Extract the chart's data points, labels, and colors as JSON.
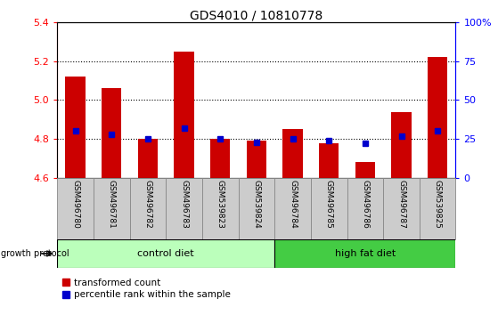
{
  "title": "GDS4010 / 10810778",
  "samples": [
    "GSM496780",
    "GSM496781",
    "GSM496782",
    "GSM496783",
    "GSM539823",
    "GSM539824",
    "GSM496784",
    "GSM496785",
    "GSM496786",
    "GSM496787",
    "GSM539825"
  ],
  "transformed_count": [
    5.12,
    5.06,
    4.8,
    5.25,
    4.8,
    4.79,
    4.85,
    4.78,
    4.68,
    4.94,
    5.22
  ],
  "percentile_rank": [
    30,
    28,
    25,
    32,
    25,
    23,
    25,
    24,
    22,
    27,
    30
  ],
  "ylim_left": [
    4.6,
    5.4
  ],
  "ylim_right": [
    0,
    100
  ],
  "yticks_left": [
    4.6,
    4.8,
    5.0,
    5.2,
    5.4
  ],
  "yticks_right": [
    0,
    25,
    50,
    75,
    100
  ],
  "ytick_labels_right": [
    "0",
    "25",
    "50",
    "75",
    "100%"
  ],
  "bar_color": "#cc0000",
  "dot_color": "#0000cc",
  "bar_bottom": 4.6,
  "control_diet_color": "#bbffbb",
  "high_fat_diet_color": "#44cc44",
  "control_diet_samples": 6,
  "high_fat_diet_samples": 5,
  "grid_yticks": [
    4.8,
    5.0,
    5.2
  ],
  "sample_label_bg": "#cccccc",
  "sample_label_edge": "#888888"
}
